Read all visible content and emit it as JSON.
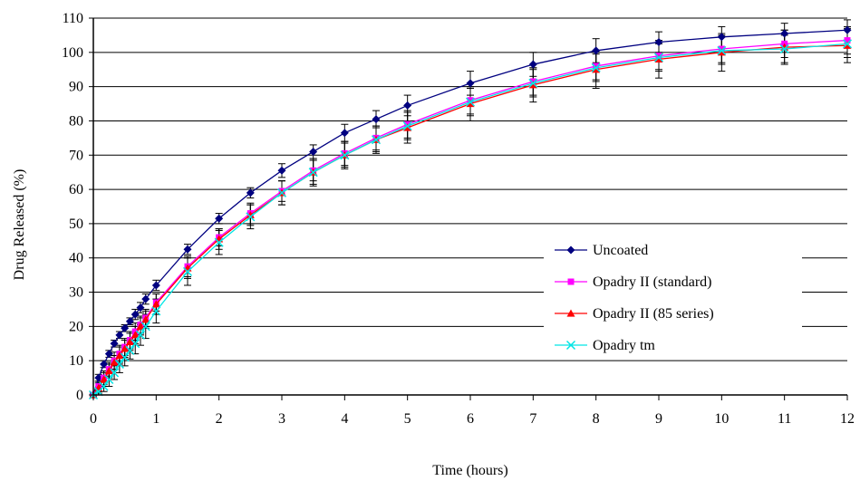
{
  "chart_data": {
    "type": "line",
    "xlabel": "Time (hours)",
    "ylabel": "Drug Released (%)",
    "xlim": [
      0,
      12
    ],
    "ylim": [
      0,
      110
    ],
    "xticks": [
      0,
      1,
      2,
      3,
      4,
      5,
      6,
      7,
      8,
      9,
      10,
      11,
      12
    ],
    "yticks": [
      0,
      10,
      20,
      30,
      40,
      50,
      60,
      70,
      80,
      90,
      100,
      110
    ],
    "grid": "horizontal",
    "legend_position": "bottom-right",
    "series": [
      {
        "name": "Uncoated",
        "color": "#000080",
        "marker": "diamond",
        "x": [
          0,
          0.083,
          0.167,
          0.25,
          0.333,
          0.417,
          0.5,
          0.583,
          0.667,
          0.75,
          0.833,
          1,
          1.5,
          2,
          2.5,
          3,
          3.5,
          4,
          4.5,
          5,
          6,
          7,
          8,
          9,
          10,
          11,
          12
        ],
        "y": [
          0,
          5,
          9,
          12,
          15,
          17.5,
          19.5,
          21.5,
          23.5,
          25.5,
          28,
          32,
          42.5,
          51.5,
          59,
          65.5,
          71,
          76.5,
          80.5,
          84.5,
          91,
          96.5,
          100.5,
          103,
          104.5,
          105.5,
          106.5
        ],
        "err": [
          0.5,
          1,
          1,
          1,
          1,
          1,
          1,
          1,
          1.5,
          1.5,
          1.5,
          1.5,
          1.5,
          1.5,
          1.5,
          2,
          2,
          2.5,
          2.5,
          3,
          3.5,
          3.5,
          3.5,
          3,
          3,
          3,
          3
        ]
      },
      {
        "name": "Opadry II (standard)",
        "color": "#ff00ff",
        "marker": "square",
        "x": [
          0,
          0.083,
          0.167,
          0.25,
          0.333,
          0.417,
          0.5,
          0.583,
          0.667,
          0.75,
          0.833,
          1,
          1.5,
          2,
          2.5,
          3,
          3.5,
          4,
          4.5,
          5,
          6,
          7,
          8,
          9,
          10,
          11,
          12
        ],
        "y": [
          0,
          2.5,
          5,
          7.5,
          10,
          12,
          14,
          16,
          18.5,
          20.5,
          22.5,
          27,
          37.5,
          46,
          53,
          59.5,
          65.5,
          70.5,
          75,
          79,
          86,
          91.5,
          96,
          99,
          101,
          102.5,
          103.5
        ],
        "err": [
          0.5,
          1.5,
          2,
          2,
          2.5,
          2.5,
          2.5,
          2.5,
          2.5,
          2.5,
          2.5,
          2.5,
          3,
          2.5,
          3,
          3,
          3,
          3.5,
          3.5,
          4,
          4,
          4,
          4,
          4,
          4,
          4,
          4
        ]
      },
      {
        "name": "Opadry II (85 series)",
        "color": "#ff0000",
        "marker": "triangle",
        "x": [
          0,
          0.083,
          0.167,
          0.25,
          0.333,
          0.417,
          0.5,
          0.583,
          0.667,
          0.75,
          0.833,
          1,
          1.5,
          2,
          2.5,
          3,
          3.5,
          4,
          4.5,
          5,
          6,
          7,
          8,
          9,
          10,
          11,
          12
        ],
        "y": [
          0,
          2,
          4.5,
          7,
          9.5,
          11.5,
          13.5,
          15.5,
          17.5,
          20,
          22,
          26.5,
          37,
          45.5,
          52.5,
          59,
          65,
          70,
          74.5,
          78,
          85,
          90.5,
          95,
          98,
          100,
          101.5,
          102
        ],
        "err": [
          0.5,
          1.5,
          2,
          2,
          2,
          2.5,
          2.5,
          2.5,
          2.5,
          2.5,
          2.5,
          3,
          3,
          3,
          3,
          3.5,
          4,
          4,
          4,
          4.5,
          5,
          5,
          5.5,
          5.5,
          5.5,
          5,
          5
        ]
      },
      {
        "name": "Opadry tm",
        "color": "#00e5e5",
        "marker": "x",
        "x": [
          0,
          0.083,
          0.167,
          0.25,
          0.333,
          0.417,
          0.5,
          0.583,
          0.667,
          0.75,
          0.833,
          1,
          1.5,
          2,
          2.5,
          3,
          3.5,
          4,
          4.5,
          5,
          6,
          7,
          8,
          9,
          10,
          11,
          12
        ],
        "y": [
          0,
          1,
          2.5,
          4.5,
          6.5,
          9,
          11,
          13,
          15,
          17.5,
          20,
          24.5,
          36,
          44.5,
          52,
          59,
          65,
          70,
          74.5,
          78.5,
          85.5,
          91,
          95.5,
          98.5,
          100.5,
          101,
          102.5
        ],
        "err": [
          0.5,
          1,
          1.5,
          2,
          2,
          2.5,
          2.5,
          2.5,
          3,
          3,
          3.5,
          3.5,
          4,
          3.5,
          3.5,
          3.5,
          3.5,
          3.5,
          3.5,
          4,
          4,
          4,
          4,
          4,
          4,
          4,
          4
        ]
      }
    ]
  }
}
